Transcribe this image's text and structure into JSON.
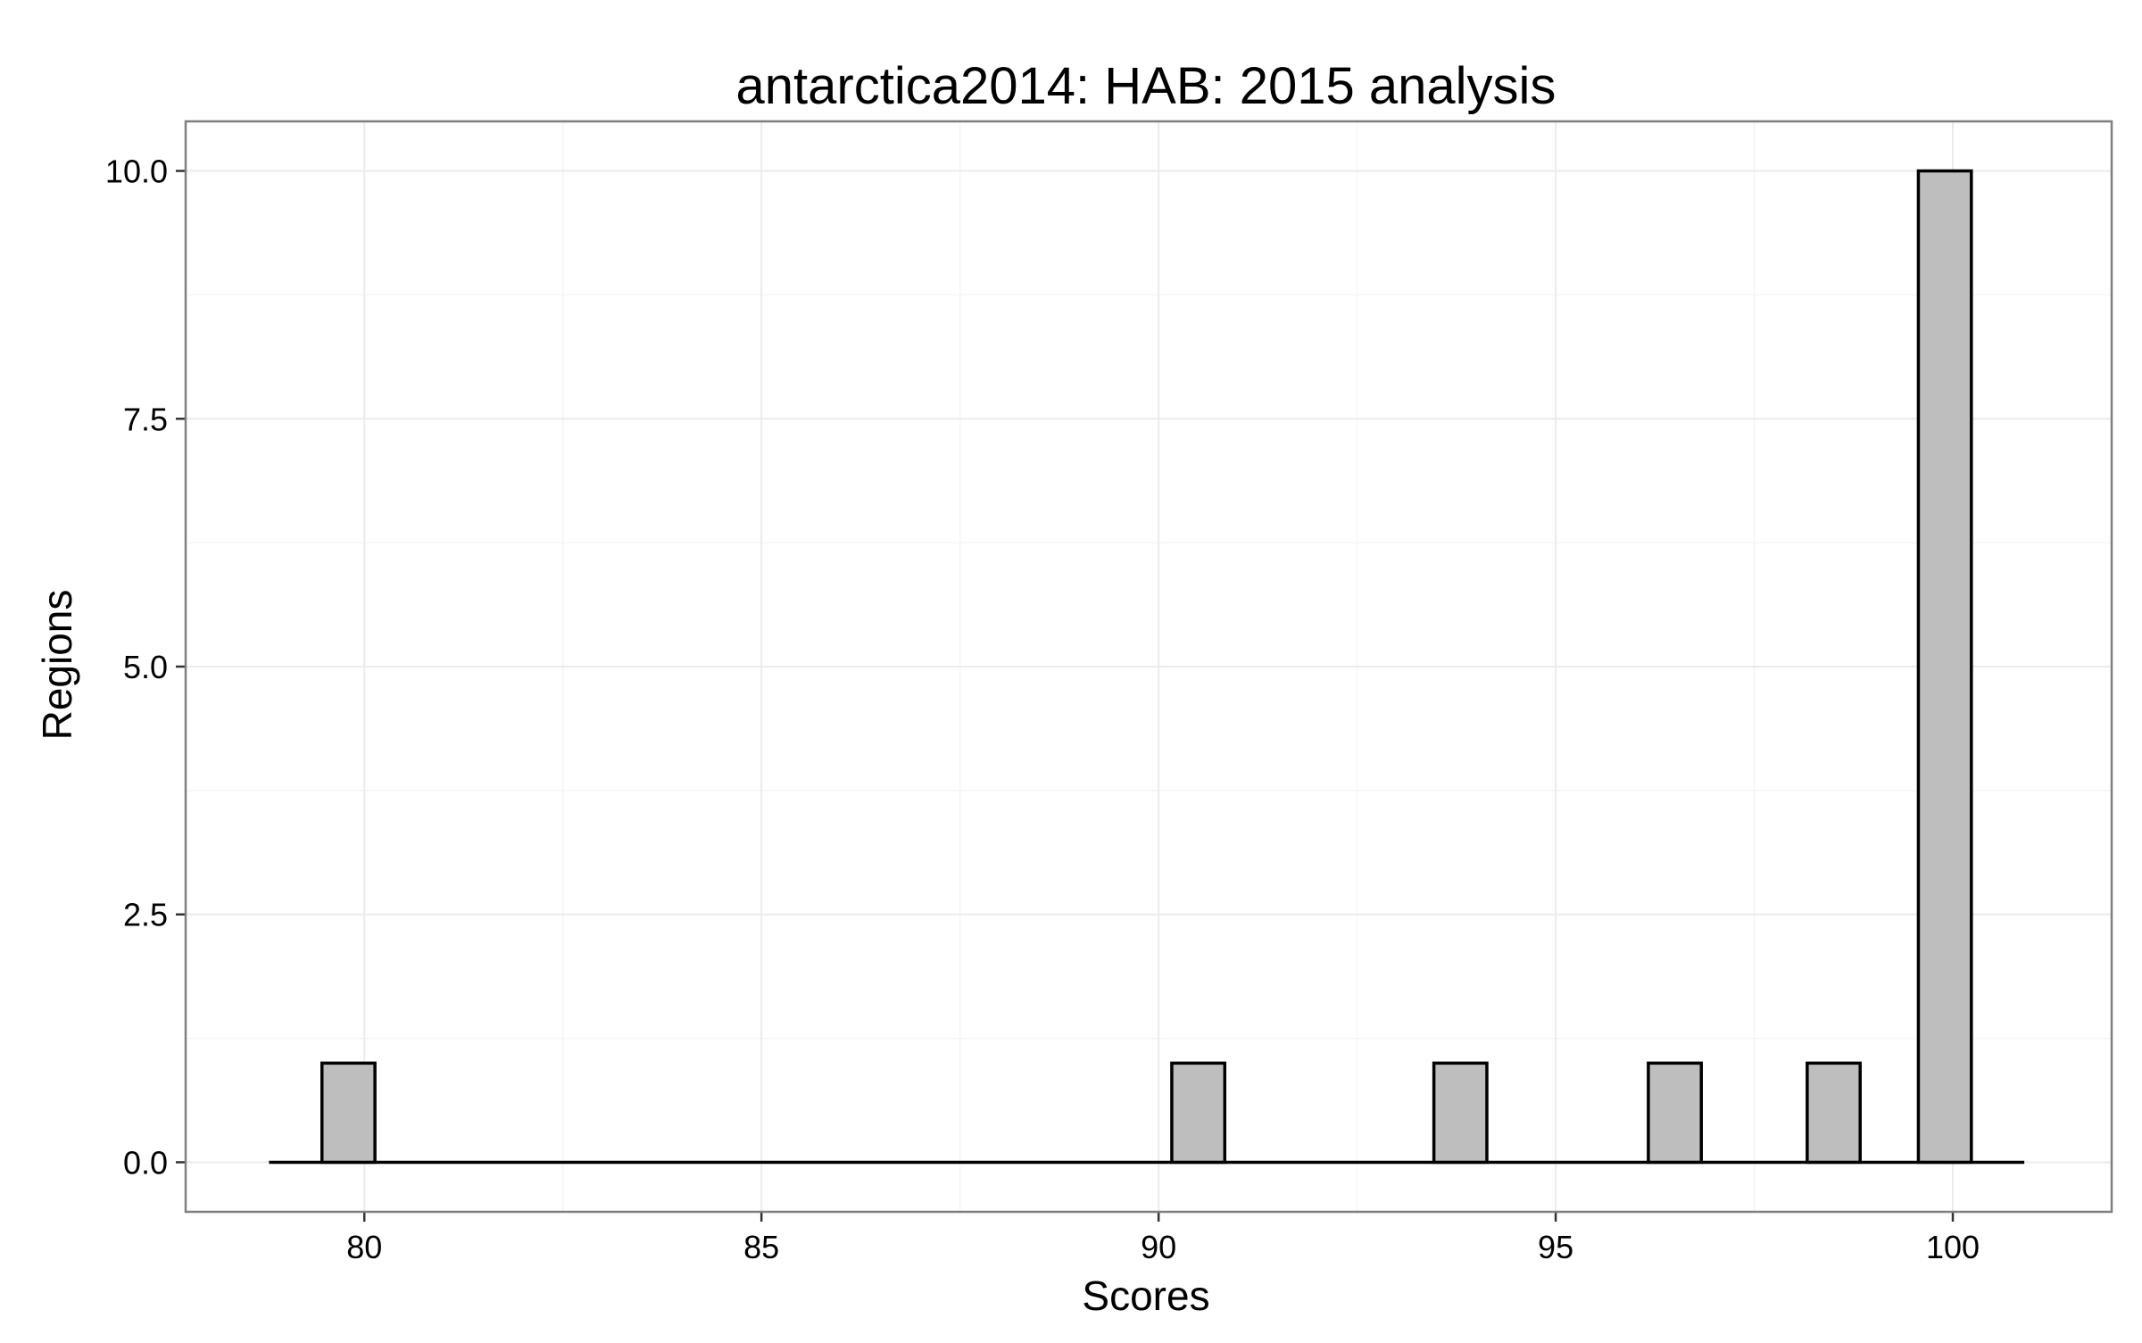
{
  "chart_data": {
    "type": "bar",
    "title": "antarctica2014: HAB: 2015 analysis",
    "xlabel": "Scores",
    "ylabel": "Regions",
    "xlim": [
      77.75,
      102.0
    ],
    "ylim": [
      -0.5,
      10.5
    ],
    "x_ticks": [
      80,
      85,
      90,
      95,
      100
    ],
    "y_ticks": [
      0.0,
      2.5,
      5.0,
      7.5,
      10.0
    ],
    "x_tick_labels": [
      "80",
      "85",
      "90",
      "95",
      "100"
    ],
    "y_tick_labels": [
      "0.0",
      "2.5",
      "5.0",
      "7.5",
      "10.0"
    ],
    "bin_width": 0.667,
    "x_range": [
      78.8,
      100.9
    ],
    "bins": [
      {
        "x": 79.8,
        "count": 1
      },
      {
        "x": 90.5,
        "count": 1
      },
      {
        "x": 93.8,
        "count": 1
      },
      {
        "x": 96.5,
        "count": 1
      },
      {
        "x": 98.5,
        "count": 1
      },
      {
        "x": 99.9,
        "count": 10
      }
    ],
    "grid": true,
    "colors": {
      "bar_fill": "#bebebe",
      "bar_stroke": "#000000",
      "panel_border": "#7f7f7f",
      "grid_major": "#ebebeb",
      "grid_minor": "#f5f5f5",
      "text": "#000000"
    }
  }
}
